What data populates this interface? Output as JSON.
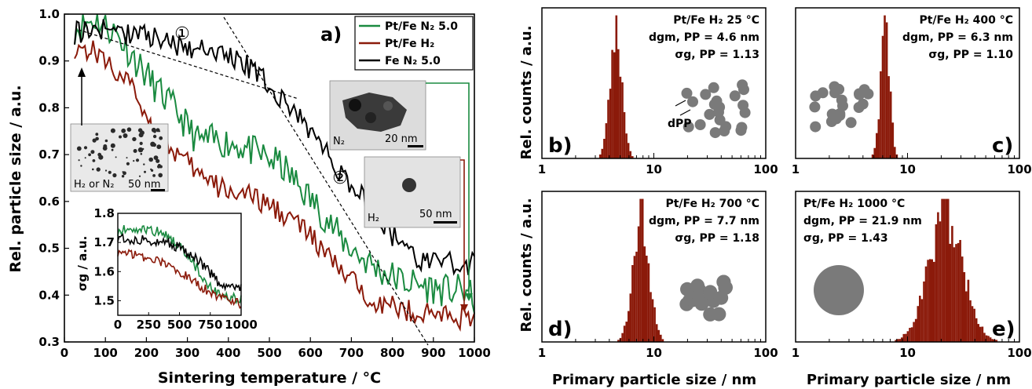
{
  "colors": {
    "green": "#1a8a40",
    "red": "#8b1a0a",
    "black": "#000000",
    "grey": "#7a7a7a"
  },
  "chart_data": [
    {
      "type": "line",
      "panel_label": "a)",
      "xlabel": "Sintering temperature / °C",
      "ylabel": "Rel. particle size / a.u.",
      "xlim": [
        0,
        1000
      ],
      "ylim": [
        0.3,
        1.0
      ],
      "x_ticks": [
        "0",
        "100",
        "200",
        "300",
        "400",
        "500",
        "600",
        "700",
        "800",
        "900",
        "1000"
      ],
      "y_ticks": [
        "0.3",
        "0.4",
        "0.5",
        "0.6",
        "0.7",
        "0.8",
        "0.9",
        "1.0"
      ],
      "legend": [
        "Pt/Fe N₂ 5.0",
        "Pt/Fe H₂",
        "Fe N₂ 5.0"
      ],
      "series": [
        {
          "name": "Pt/Fe N₂ 5.0",
          "color": "#1a8a40",
          "x": [
            25,
            75,
            125,
            175,
            225,
            275,
            325,
            375,
            425,
            475,
            525,
            575,
            625,
            675,
            725,
            775,
            825,
            875,
            925,
            975,
            1000
          ],
          "y": [
            0.97,
            0.99,
            0.96,
            0.9,
            0.84,
            0.79,
            0.73,
            0.73,
            0.72,
            0.7,
            0.68,
            0.63,
            0.58,
            0.52,
            0.48,
            0.45,
            0.43,
            0.42,
            0.41,
            0.41,
            0.39
          ]
        },
        {
          "name": "Pt/Fe H₂",
          "color": "#8b1a0a",
          "x": [
            25,
            75,
            125,
            175,
            225,
            275,
            325,
            375,
            425,
            475,
            525,
            575,
            625,
            675,
            725,
            775,
            825,
            875,
            925,
            975,
            1000
          ],
          "y": [
            0.93,
            0.92,
            0.88,
            0.83,
            0.74,
            0.7,
            0.66,
            0.63,
            0.62,
            0.6,
            0.58,
            0.55,
            0.5,
            0.45,
            0.41,
            0.38,
            0.37,
            0.36,
            0.36,
            0.35,
            0.34
          ]
        },
        {
          "name": "Fe N₂ 5.0",
          "color": "#000000",
          "x": [
            25,
            75,
            125,
            175,
            225,
            275,
            325,
            375,
            425,
            475,
            525,
            575,
            625,
            675,
            725,
            775,
            825,
            875,
            925,
            975,
            1000
          ],
          "y": [
            0.96,
            0.97,
            0.96,
            0.96,
            0.95,
            0.93,
            0.93,
            0.92,
            0.9,
            0.87,
            0.82,
            0.78,
            0.72,
            0.66,
            0.61,
            0.56,
            0.5,
            0.47,
            0.47,
            0.46,
            0.47
          ]
        }
      ],
      "annotations": [
        "①",
        "②"
      ],
      "insets": {
        "tem_a": {
          "label": "H₂ or N₂",
          "scale": "50 nm"
        },
        "tem_b": {
          "label": "N₂",
          "scale": "20 nm"
        },
        "tem_c": {
          "label": "H₂",
          "scale": "50 nm"
        }
      },
      "inset_plot": {
        "ylabel": "σg / a.u.",
        "ylim": [
          1.45,
          1.8
        ],
        "y_ticks": [
          "1.5",
          "1.6",
          "1.7",
          "1.8"
        ],
        "xlim": [
          0,
          1000
        ],
        "x_ticks": [
          "0",
          "250",
          "500",
          "750",
          "1000"
        ],
        "series": [
          {
            "name": "Pt/Fe N₂ 5.0",
            "x": [
              0,
              100,
              200,
              300,
              400,
              500,
              600,
              700,
              800,
              900,
              1000
            ],
            "y": [
              1.74,
              1.75,
              1.75,
              1.74,
              1.72,
              1.69,
              1.64,
              1.57,
              1.53,
              1.51,
              1.51
            ]
          },
          {
            "name": "Pt/Fe H₂",
            "x": [
              0,
              100,
              200,
              300,
              400,
              500,
              600,
              700,
              800,
              900,
              1000
            ],
            "y": [
              1.67,
              1.66,
              1.65,
              1.64,
              1.62,
              1.6,
              1.57,
              1.54,
              1.52,
              1.5,
              1.49
            ]
          },
          {
            "name": "Fe N₂ 5.0",
            "x": [
              0,
              100,
              200,
              300,
              400,
              500,
              600,
              700,
              800,
              900,
              1000
            ],
            "y": [
              1.72,
              1.71,
              1.71,
              1.7,
              1.7,
              1.68,
              1.66,
              1.62,
              1.57,
              1.54,
              1.55
            ]
          }
        ]
      }
    },
    {
      "type": "bar",
      "panel_label": "b)",
      "x_scale": "log",
      "xlim": [
        1,
        100
      ],
      "title_lines": [
        "Pt/Fe H₂ 25 °C",
        "dgm, PP = 4.6 nm",
        "σg, PP = 1.13"
      ],
      "gm": 4.6,
      "gsd": 1.13,
      "icon": "fractal-agglomerate"
    },
    {
      "type": "bar",
      "panel_label": "c)",
      "x_scale": "log",
      "xlim": [
        1,
        100
      ],
      "title_lines": [
        "Pt/Fe H₂ 400 °C",
        "dgm, PP = 6.3 nm",
        "σg, PP = 1.10"
      ],
      "gm": 6.3,
      "gsd": 1.1,
      "icon": "fractal-agglomerate"
    },
    {
      "type": "bar",
      "panel_label": "d)",
      "x_scale": "log",
      "xlim": [
        1,
        100
      ],
      "title_lines": [
        "Pt/Fe H₂ 700 °C",
        "dgm, PP = 7.7 nm",
        "σg, PP = 1.18"
      ],
      "gm": 7.7,
      "gsd": 1.18,
      "icon": "compact-agglomerate"
    },
    {
      "type": "bar",
      "panel_label": "e)",
      "x_scale": "log",
      "xlim": [
        1,
        100
      ],
      "title_lines": [
        "Pt/Fe H₂ 1000 °C",
        "dgm, PP = 21.9 nm",
        "σg, PP = 1.43"
      ],
      "gm": 21.9,
      "gsd": 1.43,
      "icon": "sphere"
    }
  ],
  "hist_axes": {
    "ylabel": "Rel. counts / a.u.",
    "xlabel": "Primary particle size / nm",
    "x_ticks": [
      "1",
      "10",
      "100"
    ]
  },
  "dpp_label": "dPP"
}
